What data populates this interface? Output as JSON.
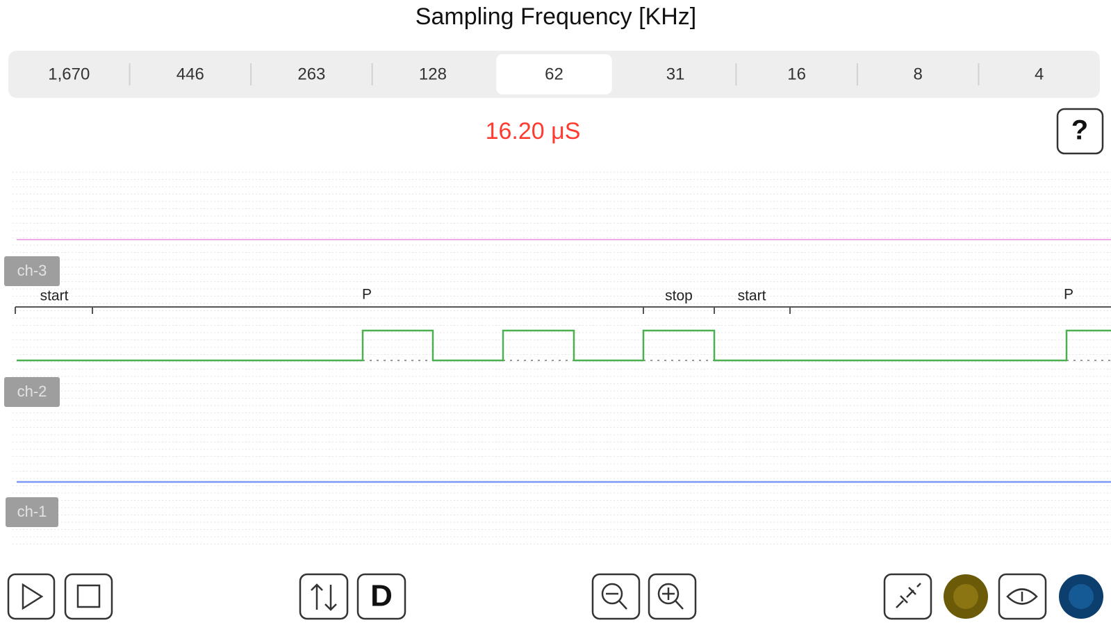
{
  "header": {
    "title": "Sampling Frequency [KHz]"
  },
  "sampling": {
    "options": [
      "1,670",
      "446",
      "263",
      "128",
      "62",
      "31",
      "16",
      "8",
      "4"
    ],
    "selected_index": 4
  },
  "period": "16.20 μS",
  "help_button": "?",
  "channels": [
    "ch-3",
    "ch-2",
    "ch-1"
  ],
  "annotations": [
    "start",
    "P",
    "stop",
    "start",
    "P"
  ],
  "toolbar": {
    "digital_button": "D"
  }
}
